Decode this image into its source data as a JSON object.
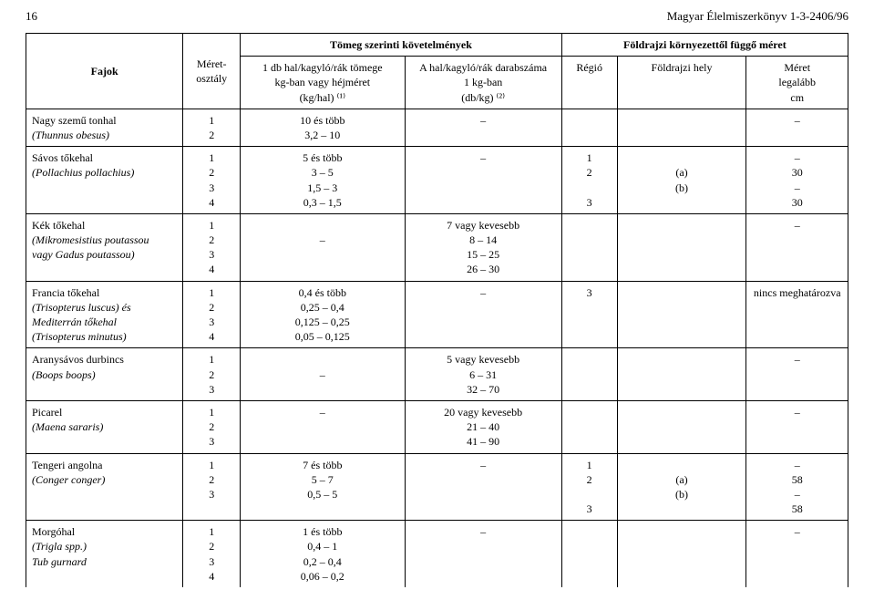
{
  "header": {
    "page_number": "16",
    "doc_title": "Magyar Élelmiszerkönyv 1-3-2406/96"
  },
  "table": {
    "group_mass": "Tömeg szerinti követelmények",
    "group_geo": "Földrajzi környezettől függő méret",
    "col_species": "Fajok",
    "col_sizeclass": "Méret-\nosztály",
    "col_mass": "1 db hal/kagyló/rák tömege\nkg-ban vagy héjméret\n(kg/hal) ⁽¹⁾",
    "col_count": "A hal/kagyló/rák darabszáma\n1 kg-ban\n(db/kg) ⁽²⁾",
    "col_region": "Régió",
    "col_loc": "Földrajzi hely",
    "col_min": "Méret\nlegalább\ncm"
  },
  "rows": [
    {
      "species_txt": "Nagy szemű tonhal",
      "species_sci": "(Thunnus obesus)",
      "sizes": "1\n2",
      "mass": "10 és több\n3,2 – 10",
      "count": "–",
      "region": "",
      "loc": "",
      "min": "–"
    },
    {
      "species_txt": "Sávos tőkehal",
      "species_sci": "(Pollachius pollachius)",
      "sizes": "1\n2\n3\n4",
      "mass": "5 és több\n3 – 5\n1,5 – 3\n0,3 – 1,5",
      "count": "–",
      "region": "1\n2\n\n3",
      "loc": "\n(a)\n(b)",
      "min": "–\n30\n–\n30"
    },
    {
      "species_txt": "Kék tőkehal",
      "species_sci": "(Mikromesistius poutassou\nvagy Gadus poutassou)",
      "sizes": "1\n2\n3\n4",
      "mass": "\n–",
      "count": "7 vagy kevesebb\n8 – 14\n15 – 25\n26 – 30",
      "region": "",
      "loc": "",
      "min": "–"
    },
    {
      "species_txt": "Francia tőkehal",
      "species_sci": "(Trisopterus luscus) és\nMediterrán tőkehal\n(Trisopterus minutus)",
      "sizes": "1\n2\n3\n4",
      "mass": "0,4 és több\n0,25 – 0,4\n0,125 – 0,25\n0,05 – 0,125",
      "count": "–",
      "region": "3",
      "loc": "",
      "min": "nincs meghatározva"
    },
    {
      "species_txt": "Aranysávos durbincs",
      "species_sci": "(Boops boops)",
      "sizes": "1\n2\n3",
      "mass": "\n–",
      "count": "5 vagy kevesebb\n6 – 31\n32 – 70",
      "region": "",
      "loc": "",
      "min": "–"
    },
    {
      "species_txt": "Picarel",
      "species_sci": "(Maena sararis)",
      "sizes": "1\n2\n3",
      "mass": "–",
      "count": "20 vagy kevesebb\n21 – 40\n41 – 90",
      "region": "",
      "loc": "",
      "min": "–"
    },
    {
      "species_txt": "Tengeri angolna",
      "species_sci": "(Conger conger)",
      "sizes": "1\n2\n3",
      "mass": "7 és több\n5 – 7\n0,5 – 5",
      "count": "–",
      "region": "1\n2\n\n3",
      "loc": "\n(a)\n(b)",
      "min": "–\n58\n–\n58"
    },
    {
      "species_txt": "Morgóhal",
      "species_sci": "(Trigla spp.)\nTub gurnard",
      "sizes": "1\n2\n3\n4",
      "mass": "1 és több\n0,4 – 1\n0,2 – 0,4\n0,06 – 0,2",
      "count": "–",
      "region": "",
      "loc": "",
      "min": "–"
    }
  ]
}
